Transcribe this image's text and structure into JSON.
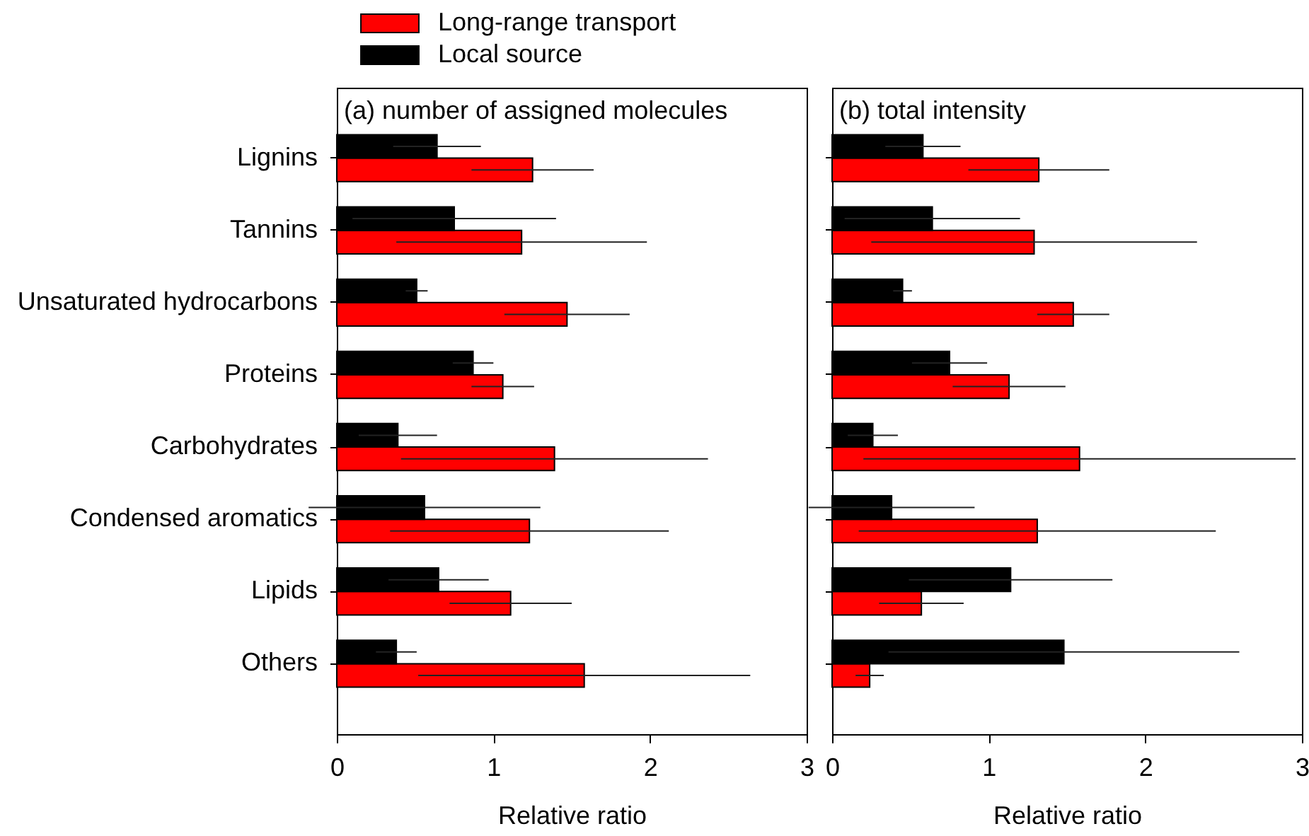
{
  "chart_data": [
    {
      "type": "bar",
      "orientation": "horizontal",
      "title": "(a) number of assigned molecules",
      "xlabel": "Relative ratio",
      "categories": [
        "Lignins",
        "Tannins",
        "Unsaturated hydrocarbons",
        "Proteins",
        "Carbohydrates",
        "Condensed aromatics",
        "Lipids",
        "Others"
      ],
      "series": [
        {
          "name": "Long-range transport",
          "color": "#ff0000",
          "values": [
            1.25,
            1.18,
            1.47,
            1.06,
            1.39,
            1.23,
            1.11,
            1.58
          ],
          "errors": [
            0.39,
            0.8,
            0.4,
            0.2,
            0.98,
            0.89,
            0.39,
            1.06
          ]
        },
        {
          "name": "Local source",
          "color": "#000000",
          "values": [
            0.64,
            0.75,
            0.51,
            0.87,
            0.39,
            0.56,
            0.65,
            0.38
          ],
          "errors": [
            0.28,
            0.65,
            0.07,
            0.13,
            0.25,
            0.74,
            0.32,
            0.13
          ]
        }
      ],
      "xlim": [
        0,
        3
      ],
      "xticks": [
        0,
        1,
        2,
        3
      ],
      "legend": "top left"
    },
    {
      "type": "bar",
      "orientation": "horizontal",
      "title": "(b) total intensity",
      "xlabel": "Relative ratio",
      "categories": [
        null,
        null,
        null,
        null,
        null,
        null,
        null,
        null
      ],
      "series": [
        {
          "color": "#ff0000",
          "values": [
            1.32,
            1.29,
            1.54,
            1.13,
            1.58,
            1.31,
            0.57,
            0.24
          ],
          "errors": [
            0.45,
            1.04,
            0.23,
            0.36,
            1.38,
            1.14,
            0.27,
            0.09
          ]
        },
        {
          "color": "#000000",
          "values": [
            0.58,
            0.64,
            0.45,
            0.75,
            0.26,
            0.38,
            1.14,
            1.48
          ],
          "errors": [
            0.24,
            0.56,
            0.06,
            0.24,
            0.16,
            0.53,
            0.65,
            1.12
          ]
        }
      ],
      "xlim": [
        0,
        3
      ],
      "xticks": [
        0,
        1,
        2,
        3
      ],
      "tick_labels": "x"
    }
  ]
}
